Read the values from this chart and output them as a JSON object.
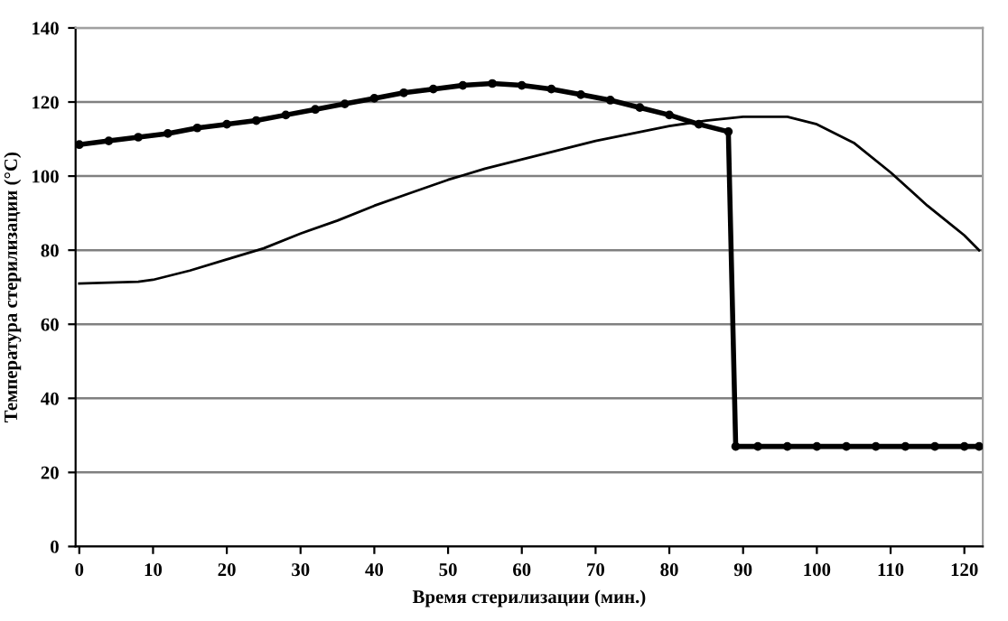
{
  "chart_data": {
    "type": "line",
    "xlabel": "Время стерилизации (мин.)",
    "ylabel": "Температура стерилизации (°C)",
    "xlim": [
      -0.5,
      122.5
    ],
    "xticks": [
      0,
      10,
      20,
      30,
      40,
      50,
      60,
      70,
      80,
      90,
      100,
      110,
      120
    ],
    "ylim": [
      0,
      140
    ],
    "yticks": [
      0,
      20,
      40,
      60,
      80,
      100,
      120,
      140
    ],
    "grid": "y",
    "legend": false,
    "series": [
      {
        "color": "#000000",
        "marker": "circle",
        "line_style": "solid",
        "x": [
          0,
          4,
          8,
          12,
          16,
          20,
          24,
          28,
          32,
          36,
          40,
          44,
          48,
          52,
          56,
          60,
          64,
          68,
          72,
          76,
          80,
          84,
          88,
          89,
          92,
          96,
          100,
          104,
          108,
          112,
          116,
          120,
          122
        ],
        "values": [
          108.5,
          109.5,
          110.5,
          111.5,
          113,
          114,
          115,
          116.5,
          118,
          119.5,
          121,
          122.5,
          123.5,
          124.5,
          125,
          124.5,
          123.5,
          122,
          120.5,
          118.5,
          116.5,
          114,
          112,
          27,
          27,
          27,
          27,
          27,
          27,
          27,
          27,
          27,
          27
        ]
      },
      {
        "color": "#000000",
        "marker": "none",
        "line_style": "solid",
        "x": [
          0,
          8,
          10,
          15,
          20,
          25,
          30,
          35,
          40,
          45,
          50,
          55,
          60,
          65,
          70,
          75,
          80,
          85,
          90,
          96,
          100,
          105,
          110,
          115,
          120,
          122
        ],
        "values": [
          71,
          71.5,
          72,
          74.5,
          77.5,
          80.5,
          84.5,
          88,
          92,
          95.5,
          99,
          102,
          104.5,
          107,
          109.5,
          111.5,
          113.5,
          115,
          116,
          116,
          114,
          109,
          101,
          92,
          84,
          80
        ]
      }
    ]
  }
}
